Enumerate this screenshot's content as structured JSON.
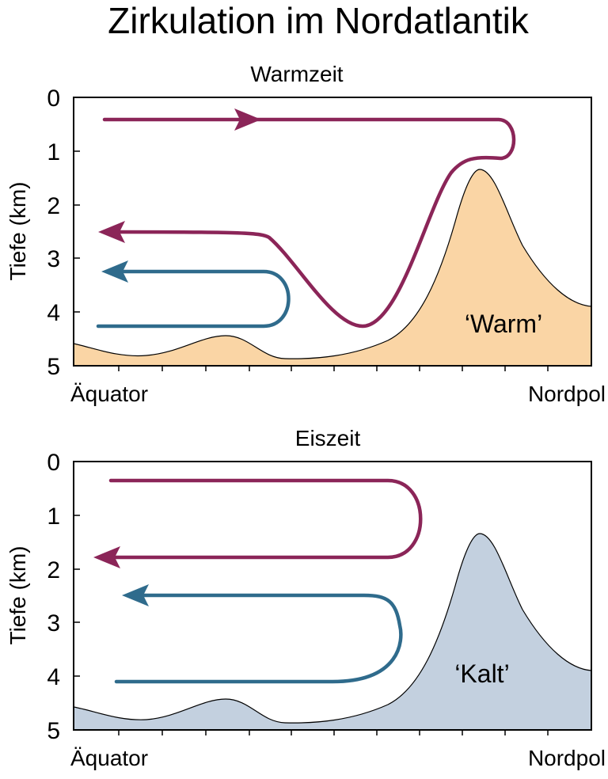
{
  "title": "Zirkulation im Nordatlantik",
  "colors": {
    "warm_fill": "#fad5a5",
    "cold_fill": "#c3d0df",
    "purple_arrow": "#8b2558",
    "blue_arrow": "#2f6b8c",
    "frame": "#000000"
  },
  "panels": [
    {
      "subtitle": "Warmzeit",
      "ylabel": "Tiefe (km)",
      "y_ticks": [
        "0",
        "1",
        "2",
        "3",
        "4",
        "5"
      ],
      "x_start_label": "Äquator",
      "x_end_label": "Nordpol",
      "region_label": "‘Warm’",
      "terrain_fill": "warm_fill"
    },
    {
      "subtitle": "Eiszeit",
      "ylabel": "Tiefe (km)",
      "y_ticks": [
        "0",
        "1",
        "2",
        "3",
        "4",
        "5"
      ],
      "x_start_label": "Äquator",
      "x_end_label": "Nordpol",
      "region_label": "‘Kalt’",
      "terrain_fill": "cold_fill"
    }
  ]
}
